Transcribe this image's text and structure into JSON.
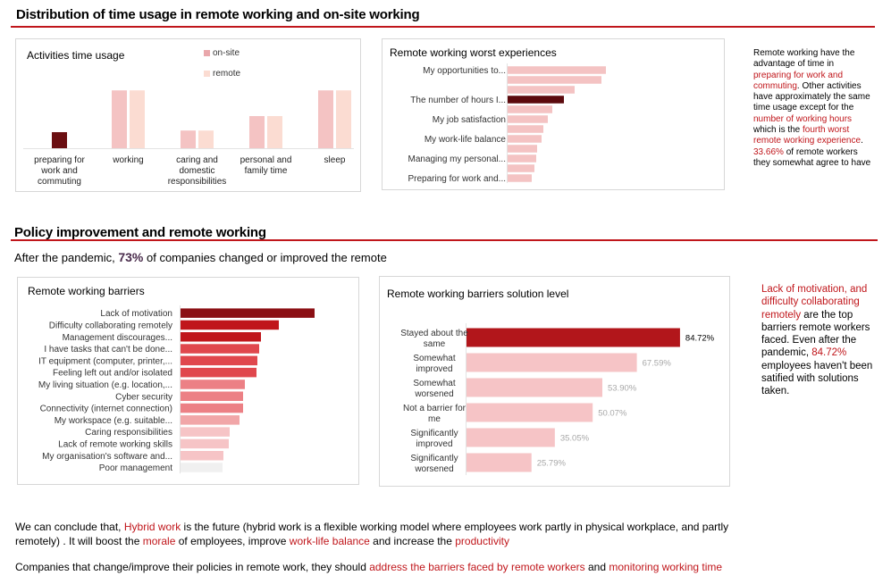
{
  "section1": {
    "title": "Distribution of time usage in remote working and on-site working"
  },
  "section2": {
    "title": "Policy improvement and remote working",
    "subtitle_pre": "After the pandemic, ",
    "subtitle_pct": "73%",
    "subtitle_post": " of companies changed or improved the remote"
  },
  "colors": {
    "accent": "#c0161b",
    "rule": "#c0161b"
  },
  "note1": {
    "p1": "Remote working have the advantage of time in ",
    "h1": "preparing for work and commuting",
    "p2": ". Other activities have approximately the same time usage except for the ",
    "h2": "number of working hours",
    "p3": " which is the ",
    "h3": "fourth worst remote working experience",
    "p4": ". ",
    "h4": "33.66%",
    "p5": " of remote workers they somewhat agree to have"
  },
  "note2": {
    "h1": "Lack of motivation, and difficulty collaborating remotely",
    "p1": " are the top barriers remote workers faced. Even after the pandemic, ",
    "h2": "84.72%",
    "p2": " employees haven't been satified with solutions taken."
  },
  "conclusion": {
    "l1a": "We can conclude that, ",
    "l1b": "Hybrid work",
    "l1c": " is the future (hybrid work is a flexible working model where employees work partly in physical workplace, and partly",
    "l2a": "remotely) . It will boost the ",
    "l2b": "morale",
    "l2c": " of employees, improve ",
    "l2d": "work-life balance",
    "l2e": " and increase the ",
    "l2f": "productivity",
    "l3a": "Companies that change/improve their policies in remote work, they should ",
    "l3b": "address the barriers faced by remote workers",
    "l3c": " and ",
    "l3d": "monitoring working time"
  },
  "chart_data": [
    {
      "id": "activities",
      "type": "bar",
      "title": "Activities time usage",
      "categories": [
        "preparing for work and commuting",
        "working",
        "caring and domestic responsibilities",
        "personal and family time",
        "sleep"
      ],
      "series": [
        {
          "name": "on-site",
          "values": [
            1.0,
            3.6,
            1.1,
            2.0,
            3.6
          ],
          "colors": [
            "#6b0f12",
            "#f4c3c3",
            "#f4c3c3",
            "#f4c3c3",
            "#f4c3c3"
          ]
        },
        {
          "name": "remote",
          "values": [
            null,
            3.6,
            1.1,
            2.0,
            3.6
          ],
          "color": "#fbdcd2"
        }
      ],
      "ylim": [
        0,
        4
      ],
      "legend": "top"
    },
    {
      "id": "worst",
      "type": "bar",
      "orientation": "horizontal",
      "title": "Remote working worst experiences",
      "categories": [
        "My opportunities to...",
        "",
        "",
        "The number of hours I...",
        "",
        "My job satisfaction",
        "",
        "My work-life balance",
        "",
        "Managing my personal...",
        "",
        "Preparing for work and..."
      ],
      "values": [
        110,
        105,
        75,
        63,
        50,
        45,
        40,
        38,
        33,
        32,
        30,
        27
      ],
      "colors": [
        "#f4c3c3",
        "#f4c3c3",
        "#f4c3c3",
        "#5c0a0d",
        "#f4c3c3",
        "#f4c3c3",
        "#f4c3c3",
        "#f4c3c3",
        "#f4c3c3",
        "#f4c3c3",
        "#f4c3c3",
        "#f4c3c3"
      ],
      "xlim": [
        0,
        120
      ]
    },
    {
      "id": "barriers",
      "type": "bar",
      "orientation": "horizontal",
      "title": "Remote working barriers",
      "categories": [
        "Lack of motivation",
        "Difficulty collaborating remotely",
        "Management discourages...",
        "I have tasks that can't be done...",
        "IT equipment (computer, printer,...",
        "Feeling left out and/or isolated",
        "My living situation (e.g. location,...",
        "Cyber security",
        "Connectivity (internet connection)",
        "My workspace (e.g. suitable...",
        "Caring responsibilities",
        "Lack of remote working skills",
        "My organisation's software and...",
        "Poor management"
      ],
      "values": [
        150,
        110,
        90,
        88,
        86,
        85,
        72,
        70,
        70,
        66,
        55,
        54,
        48,
        47
      ],
      "colors": [
        "#8b0f14",
        "#c0161b",
        "#c0161b",
        "#e0474d",
        "#e0474d",
        "#e0474d",
        "#ec8085",
        "#ec8085",
        "#ec8085",
        "#f1a6a8",
        "#f6c4c6",
        "#f6c4c6",
        "#f6c4c6",
        "#f0f0f0"
      ],
      "xlim": [
        0,
        160
      ]
    },
    {
      "id": "solution",
      "type": "bar",
      "orientation": "horizontal",
      "title": "Remote working barriers solution level",
      "categories": [
        "Stayed about the same",
        "Somewhat improved",
        "Somewhat worsened",
        "Not a barrier for me",
        "Significantly improved",
        "Significantly worsened"
      ],
      "values": [
        84.72,
        67.59,
        53.9,
        50.07,
        35.05,
        25.79
      ],
      "labels": [
        "84.72%",
        "67.59%",
        "53.90%",
        "50.07%",
        "35.05%",
        "25.79%"
      ],
      "colors": [
        "#b2161b",
        "#f6c4c6",
        "#f6c4c6",
        "#f6c4c6",
        "#f6c4c6",
        "#f6c4c6"
      ],
      "label_colors": [
        "#000000",
        "#a8a8a8",
        "#a8a8a8",
        "#a8a8a8",
        "#a8a8a8",
        "#a8a8a8"
      ],
      "xlim": [
        0,
        100
      ]
    }
  ]
}
